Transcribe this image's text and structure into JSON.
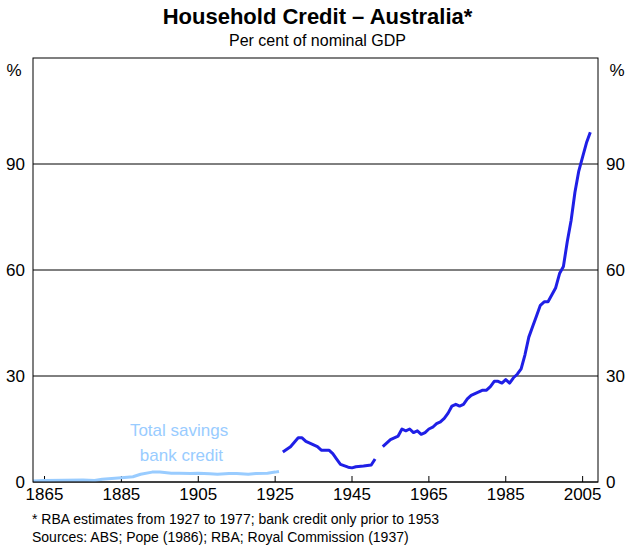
{
  "chart_data": {
    "type": "line",
    "title": "Household Credit – Australia*",
    "subtitle": "Per cent of nominal GDP",
    "ylabel": "%",
    "notes": [
      "*  RBA estimates from 1927 to 1977; bank credit only prior to 1953",
      "Sources: ABS; Pope (1986); RBA; Royal Commission (1937)"
    ],
    "xlim": [
      1862,
      2009
    ],
    "xticks": [
      1865,
      1885,
      1905,
      1925,
      1945,
      1965,
      1985,
      2005
    ],
    "ylim": [
      0,
      120
    ],
    "yticks": [
      0,
      30,
      60,
      90
    ],
    "grid": true,
    "series": [
      {
        "name": "Total savings bank credit",
        "color": "#99ccff",
        "x": [
          1862,
          1865,
          1870,
          1875,
          1878,
          1880,
          1885,
          1888,
          1890,
          1893,
          1895,
          1898,
          1900,
          1903,
          1905,
          1908,
          1910,
          1913,
          1915,
          1918,
          1920,
          1923,
          1925,
          1926
        ],
        "values": [
          0.3,
          0.4,
          0.5,
          0.6,
          0.4,
          0.8,
          1.2,
          1.5,
          2.2,
          2.8,
          2.8,
          2.5,
          2.5,
          2.4,
          2.5,
          2.3,
          2.2,
          2.4,
          2.4,
          2.2,
          2.4,
          2.5,
          2.8,
          3
        ]
      },
      {
        "color": "#1f1fe6",
        "x": [
          1927,
          1929,
          1931,
          1932,
          1933,
          1935,
          1936,
          1937,
          1939,
          1940,
          1941,
          1942,
          1944,
          1945,
          1946,
          1948,
          1950,
          1951,
          1952,
          1953,
          1955,
          1957,
          1958,
          1959,
          1960,
          1961,
          1962,
          1963,
          1964,
          1965,
          1966,
          1967,
          1968,
          1969,
          1970,
          1971,
          1972,
          1973,
          1974,
          1975,
          1976,
          1977,
          1978,
          1979,
          1980,
          1981,
          1982,
          1983,
          1984,
          1985,
          1986,
          1987,
          1988,
          1989,
          1990,
          1991,
          1992,
          1993,
          1994,
          1995,
          1996,
          1997,
          1998,
          1999,
          2000,
          2001,
          2002,
          2003,
          2004,
          2005,
          2006,
          2007
        ],
        "values": [
          8.5,
          10,
          12.5,
          12.5,
          11.5,
          10.5,
          10,
          9,
          9,
          8,
          6.5,
          5,
          4.2,
          4,
          4.3,
          4.5,
          4.8,
          6.5,
          null,
          10,
          12,
          13,
          15,
          14.5,
          15,
          14,
          14.5,
          13.5,
          14,
          15,
          15.5,
          16.5,
          17,
          18,
          19.5,
          21.5,
          22,
          21.5,
          22,
          23.5,
          24.5,
          25,
          25.5,
          26,
          26,
          27,
          28.5,
          28.5,
          28,
          29,
          28,
          29.5,
          30.5,
          32,
          36,
          41,
          44,
          47,
          50,
          51,
          51,
          53,
          55,
          59,
          61,
          68,
          74,
          82,
          88,
          92,
          96,
          99
        ]
      }
    ]
  }
}
